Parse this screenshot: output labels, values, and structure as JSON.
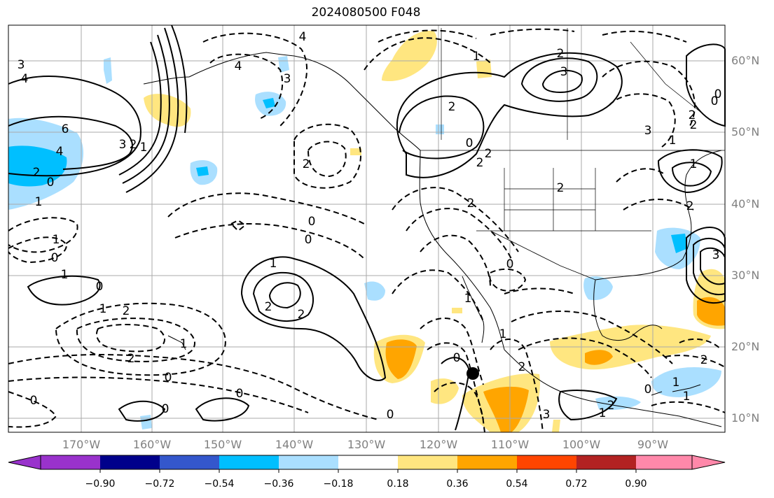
{
  "title": "2024080500 F048",
  "lat_labels": [
    "60°N",
    "50°N",
    "40°N",
    "30°N",
    "20°N",
    "10°N"
  ],
  "lon_labels": [
    "170°W",
    "160°W",
    "150°W",
    "140°W",
    "130°W",
    "120°W",
    "110°W",
    "100°W",
    "90°W"
  ],
  "colorbar": {
    "colors": [
      "#9932cc",
      "#00008b",
      "#3457cc",
      "#00bfff",
      "#aadfff",
      "#ffffff",
      "#ffe680",
      "#ffa500",
      "#ff4500",
      "#b22222",
      "#ff88aa"
    ],
    "tick_labels": [
      "−0.90",
      "−0.72",
      "−0.54",
      "−0.36",
      "−0.18",
      "0.18",
      "0.36",
      "0.54",
      "0.72",
      "0.90"
    ]
  },
  "contour_labels": [
    "4",
    "3",
    "6",
    "4",
    "2",
    "0",
    "1",
    "3",
    "2",
    "1",
    "4",
    "4",
    "3",
    "2",
    "3",
    "2",
    "1",
    "2",
    "0",
    "2",
    "2",
    "2",
    "3",
    "2",
    "0",
    "1",
    "2",
    "1",
    "0",
    "1",
    "0",
    "2",
    "1",
    "2",
    "0",
    "0",
    "1",
    "2",
    "2",
    "1",
    "2",
    "0",
    "0",
    "0",
    "0",
    "0",
    "1",
    "2",
    "0",
    "1",
    "2",
    "1",
    "3",
    "2",
    "1",
    "0",
    "2",
    "1",
    "0",
    "0",
    "1",
    "3"
  ],
  "storm_marker": "tropical cyclone center"
}
